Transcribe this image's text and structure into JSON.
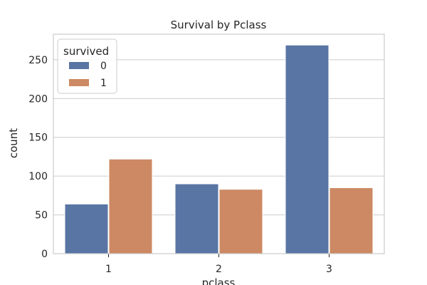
{
  "chart_data": {
    "type": "bar",
    "title": "Survival by Pclass",
    "xlabel": "pclass",
    "ylabel": "count",
    "categories": [
      "1",
      "2",
      "3"
    ],
    "series": [
      {
        "name": "0",
        "values": [
          64,
          90,
          269
        ],
        "color": "#5875a4"
      },
      {
        "name": "1",
        "values": [
          122,
          83,
          85
        ],
        "color": "#cc8963"
      }
    ],
    "ylim": [
      0,
      283
    ],
    "yticks": [
      0,
      50,
      100,
      150,
      200,
      250
    ],
    "legend": {
      "title": "survived",
      "placement": "top-left"
    },
    "grid": "horizontal"
  }
}
